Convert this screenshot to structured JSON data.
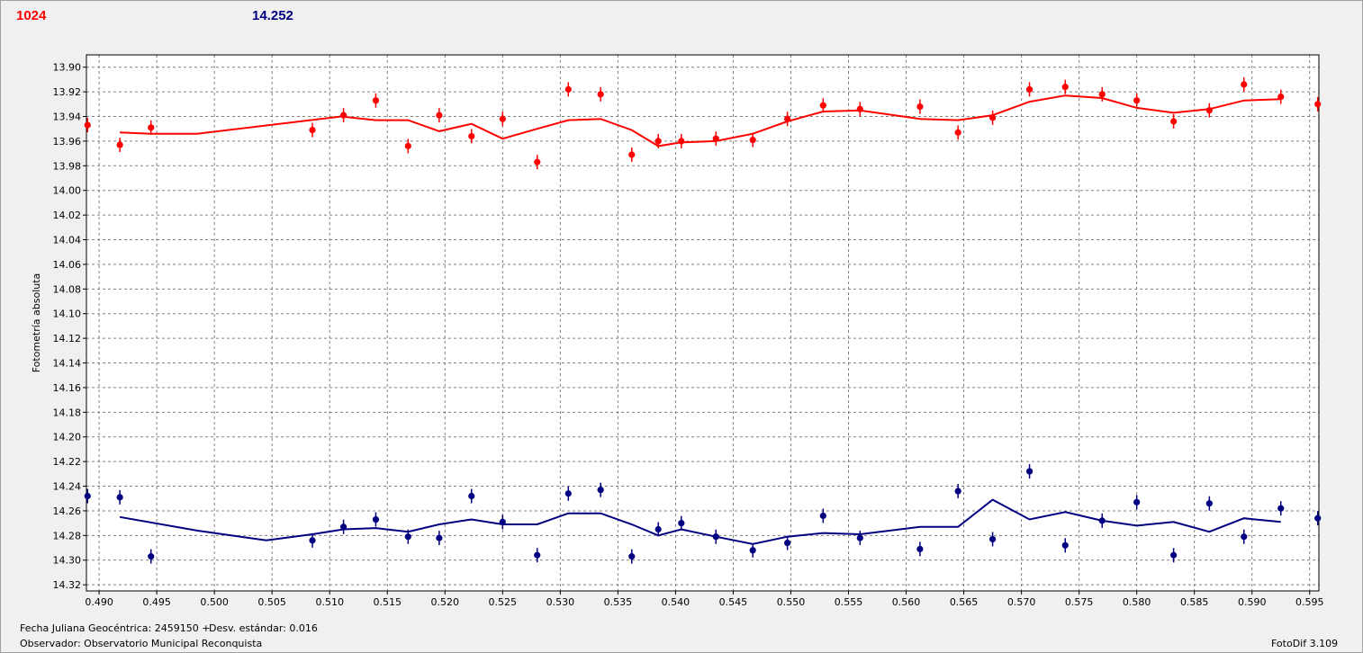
{
  "header": {
    "red_value": "1024",
    "blue_value": "14.252"
  },
  "footer": {
    "jd_label": "Fecha Juliana Geocéntrica: 2459150 +",
    "std_label": "Desv. estándar: 0.016",
    "observer_label": "Observador: Observatorio Municipal Reconquista",
    "app_version": "FotoDif 3.109"
  },
  "colors": {
    "red_series": "#ff0000",
    "blue_series": "#000080",
    "plot_bg": "#ffffff",
    "grid": "#808080"
  },
  "chart_data": {
    "type": "scatter",
    "ylabel": "Fotometría absoluta",
    "xlabel": "",
    "xlim": [
      0.4889,
      0.5958
    ],
    "ylim": [
      13.89,
      14.325
    ],
    "y_inverted": true,
    "grid": true,
    "x_ticks": [
      "0.490",
      "0.495",
      "0.500",
      "0.505",
      "0.510",
      "0.515",
      "0.520",
      "0.525",
      "0.530",
      "0.535",
      "0.540",
      "0.545",
      "0.550",
      "0.555",
      "0.560",
      "0.565",
      "0.570",
      "0.575",
      "0.580",
      "0.585",
      "0.590",
      "0.595"
    ],
    "y_ticks": [
      "13.90",
      "13.92",
      "13.94",
      "13.96",
      "13.98",
      "14.00",
      "14.02",
      "14.04",
      "14.06",
      "14.08",
      "14.10",
      "14.12",
      "14.14",
      "14.16",
      "14.18",
      "14.20",
      "14.22",
      "14.24",
      "14.26",
      "14.28",
      "14.30",
      "14.32"
    ],
    "series": [
      {
        "color": "#ff0000",
        "points": [
          {
            "x": 0.489,
            "y": 13.947
          },
          {
            "x": 0.4918,
            "y": 13.963
          },
          {
            "x": 0.4945,
            "y": 13.949
          },
          {
            "x": 0.5085,
            "y": 13.951
          },
          {
            "x": 0.5112,
            "y": 13.939
          },
          {
            "x": 0.514,
            "y": 13.927
          },
          {
            "x": 0.5168,
            "y": 13.964
          },
          {
            "x": 0.5195,
            "y": 13.939
          },
          {
            "x": 0.5223,
            "y": 13.956
          },
          {
            "x": 0.525,
            "y": 13.942
          },
          {
            "x": 0.528,
            "y": 13.977
          },
          {
            "x": 0.5307,
            "y": 13.918
          },
          {
            "x": 0.5335,
            "y": 13.922
          },
          {
            "x": 0.5362,
            "y": 13.971
          },
          {
            "x": 0.5385,
            "y": 13.96
          },
          {
            "x": 0.5405,
            "y": 13.96
          },
          {
            "x": 0.5435,
            "y": 13.958
          },
          {
            "x": 0.5467,
            "y": 13.959
          },
          {
            "x": 0.5497,
            "y": 13.942
          },
          {
            "x": 0.5528,
            "y": 13.931
          },
          {
            "x": 0.556,
            "y": 13.934
          },
          {
            "x": 0.5612,
            "y": 13.932
          },
          {
            "x": 0.5645,
            "y": 13.953
          },
          {
            "x": 0.5675,
            "y": 13.941
          },
          {
            "x": 0.5707,
            "y": 13.918
          },
          {
            "x": 0.5738,
            "y": 13.916
          },
          {
            "x": 0.577,
            "y": 13.922
          },
          {
            "x": 0.58,
            "y": 13.927
          },
          {
            "x": 0.5832,
            "y": 13.944
          },
          {
            "x": 0.5863,
            "y": 13.935
          },
          {
            "x": 0.5893,
            "y": 13.914
          },
          {
            "x": 0.5925,
            "y": 13.924
          },
          {
            "x": 0.5957,
            "y": 13.93
          }
        ],
        "fit": [
          {
            "x": 0.4918,
            "y": 13.953
          },
          {
            "x": 0.4945,
            "y": 13.954
          },
          {
            "x": 0.4985,
            "y": 13.954
          },
          {
            "x": 0.511,
            "y": 13.94
          },
          {
            "x": 0.514,
            "y": 13.943
          },
          {
            "x": 0.5168,
            "y": 13.943
          },
          {
            "x": 0.5195,
            "y": 13.952
          },
          {
            "x": 0.5223,
            "y": 13.946
          },
          {
            "x": 0.525,
            "y": 13.958
          },
          {
            "x": 0.528,
            "y": 13.95
          },
          {
            "x": 0.5307,
            "y": 13.943
          },
          {
            "x": 0.5335,
            "y": 13.942
          },
          {
            "x": 0.5362,
            "y": 13.951
          },
          {
            "x": 0.5385,
            "y": 13.964
          },
          {
            "x": 0.5405,
            "y": 13.961
          },
          {
            "x": 0.5435,
            "y": 13.96
          },
          {
            "x": 0.5467,
            "y": 13.954
          },
          {
            "x": 0.5497,
            "y": 13.944
          },
          {
            "x": 0.5528,
            "y": 13.936
          },
          {
            "x": 0.556,
            "y": 13.935
          },
          {
            "x": 0.5612,
            "y": 13.942
          },
          {
            "x": 0.5645,
            "y": 13.943
          },
          {
            "x": 0.5675,
            "y": 13.939
          },
          {
            "x": 0.5707,
            "y": 13.928
          },
          {
            "x": 0.5738,
            "y": 13.923
          },
          {
            "x": 0.577,
            "y": 13.925
          },
          {
            "x": 0.58,
            "y": 13.933
          },
          {
            "x": 0.5832,
            "y": 13.937
          },
          {
            "x": 0.5863,
            "y": 13.934
          },
          {
            "x": 0.5893,
            "y": 13.927
          },
          {
            "x": 0.5925,
            "y": 13.926
          }
        ]
      },
      {
        "color": "#000080",
        "points": [
          {
            "x": 0.489,
            "y": 14.248
          },
          {
            "x": 0.4918,
            "y": 14.249
          },
          {
            "x": 0.4945,
            "y": 14.297
          },
          {
            "x": 0.5085,
            "y": 14.284
          },
          {
            "x": 0.5112,
            "y": 14.273
          },
          {
            "x": 0.514,
            "y": 14.267
          },
          {
            "x": 0.5168,
            "y": 14.281
          },
          {
            "x": 0.5195,
            "y": 14.282
          },
          {
            "x": 0.5223,
            "y": 14.248
          },
          {
            "x": 0.525,
            "y": 14.269
          },
          {
            "x": 0.528,
            "y": 14.296
          },
          {
            "x": 0.5307,
            "y": 14.246
          },
          {
            "x": 0.5335,
            "y": 14.243
          },
          {
            "x": 0.5362,
            "y": 14.297
          },
          {
            "x": 0.5385,
            "y": 14.275
          },
          {
            "x": 0.5405,
            "y": 14.27
          },
          {
            "x": 0.5435,
            "y": 14.281
          },
          {
            "x": 0.5467,
            "y": 14.292
          },
          {
            "x": 0.5497,
            "y": 14.286
          },
          {
            "x": 0.5528,
            "y": 14.264
          },
          {
            "x": 0.556,
            "y": 14.282
          },
          {
            "x": 0.5612,
            "y": 14.291
          },
          {
            "x": 0.5645,
            "y": 14.244
          },
          {
            "x": 0.5675,
            "y": 14.283
          },
          {
            "x": 0.5707,
            "y": 14.228
          },
          {
            "x": 0.5738,
            "y": 14.288
          },
          {
            "x": 0.577,
            "y": 14.268
          },
          {
            "x": 0.58,
            "y": 14.253
          },
          {
            "x": 0.5832,
            "y": 14.296
          },
          {
            "x": 0.5863,
            "y": 14.254
          },
          {
            "x": 0.5893,
            "y": 14.281
          },
          {
            "x": 0.5925,
            "y": 14.258
          },
          {
            "x": 0.5957,
            "y": 14.266
          }
        ],
        "fit": [
          {
            "x": 0.4918,
            "y": 14.265
          },
          {
            "x": 0.4985,
            "y": 14.276
          },
          {
            "x": 0.5045,
            "y": 14.284
          },
          {
            "x": 0.5085,
            "y": 14.279
          },
          {
            "x": 0.5112,
            "y": 14.275
          },
          {
            "x": 0.514,
            "y": 14.274
          },
          {
            "x": 0.5168,
            "y": 14.277
          },
          {
            "x": 0.5195,
            "y": 14.271
          },
          {
            "x": 0.5223,
            "y": 14.267
          },
          {
            "x": 0.525,
            "y": 14.271
          },
          {
            "x": 0.528,
            "y": 14.271
          },
          {
            "x": 0.5307,
            "y": 14.262
          },
          {
            "x": 0.5335,
            "y": 14.262
          },
          {
            "x": 0.5362,
            "y": 14.271
          },
          {
            "x": 0.5385,
            "y": 14.28
          },
          {
            "x": 0.5405,
            "y": 14.275
          },
          {
            "x": 0.5435,
            "y": 14.281
          },
          {
            "x": 0.5467,
            "y": 14.287
          },
          {
            "x": 0.5497,
            "y": 14.281
          },
          {
            "x": 0.5528,
            "y": 14.278
          },
          {
            "x": 0.556,
            "y": 14.279
          },
          {
            "x": 0.5612,
            "y": 14.273
          },
          {
            "x": 0.5645,
            "y": 14.273
          },
          {
            "x": 0.5675,
            "y": 14.251
          },
          {
            "x": 0.5707,
            "y": 14.267
          },
          {
            "x": 0.5738,
            "y": 14.261
          },
          {
            "x": 0.577,
            "y": 14.268
          },
          {
            "x": 0.58,
            "y": 14.272
          },
          {
            "x": 0.5832,
            "y": 14.269
          },
          {
            "x": 0.5863,
            "y": 14.277
          },
          {
            "x": 0.5893,
            "y": 14.266
          },
          {
            "x": 0.5925,
            "y": 14.269
          }
        ]
      }
    ]
  }
}
